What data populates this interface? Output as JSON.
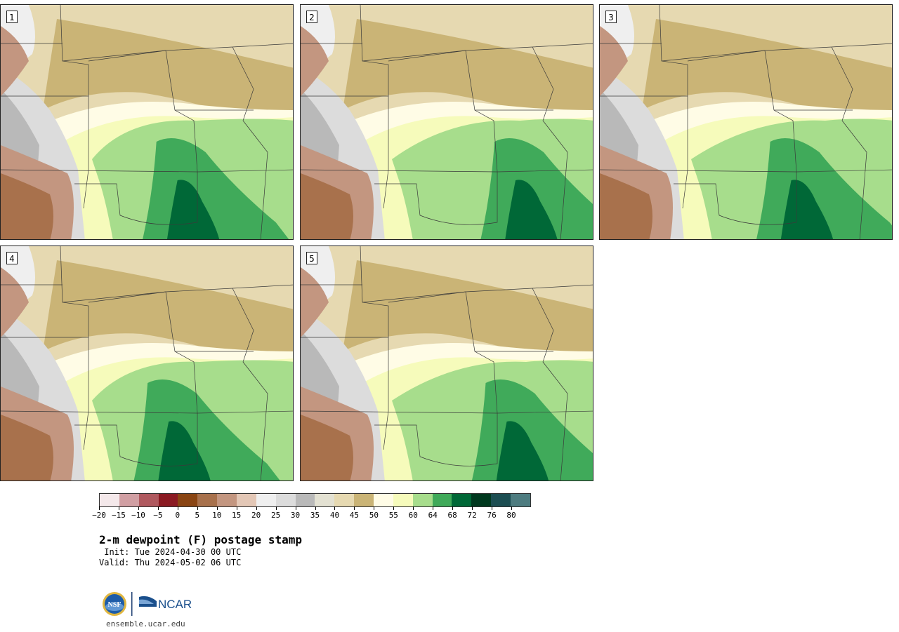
{
  "panels": [
    {
      "label": "1",
      "green_x": 0.62,
      "dark_x": 0.65
    },
    {
      "label": "2",
      "green_x": 0.7,
      "dark_x": 0.78
    },
    {
      "label": "3",
      "green_x": 0.72,
      "dark_x": 0.7
    },
    {
      "label": "4",
      "green_x": 0.63,
      "dark_x": 0.62
    },
    {
      "label": "5",
      "green_x": 0.72,
      "dark_x": 0.75
    }
  ],
  "colorbar": {
    "colors": [
      "#f4e8ea",
      "#d19fa3",
      "#b0595f",
      "#8b1a22",
      "#8a4513",
      "#a8714c",
      "#c39680",
      "#e3c7b6",
      "#efefef",
      "#dcdcdc",
      "#b9b9b9",
      "#e3e1d2",
      "#e6d9b1",
      "#cab476",
      "#fffce6",
      "#f6fbbb",
      "#a7dd8c",
      "#40aa5a",
      "#006837",
      "#00391f",
      "#1c4e52",
      "#4e7c80"
    ],
    "tick_labels": [
      "−20",
      "−15",
      "−10",
      "−5",
      "0",
      "5",
      "10",
      "15",
      "20",
      "25",
      "30",
      "35",
      "40",
      "45",
      "50",
      "55",
      "60",
      "64",
      "68",
      "72",
      "76",
      "80"
    ]
  },
  "text": {
    "title": "2-m dewpoint (F) postage stamp",
    "init": " Init: Tue 2024-04-30 00 UTC",
    "valid": "Valid: Thu 2024-05-02 06 UTC",
    "site": "ensemble.ucar.edu",
    "nsf_logo": "NSF",
    "ncar_logo": "NCAR"
  }
}
